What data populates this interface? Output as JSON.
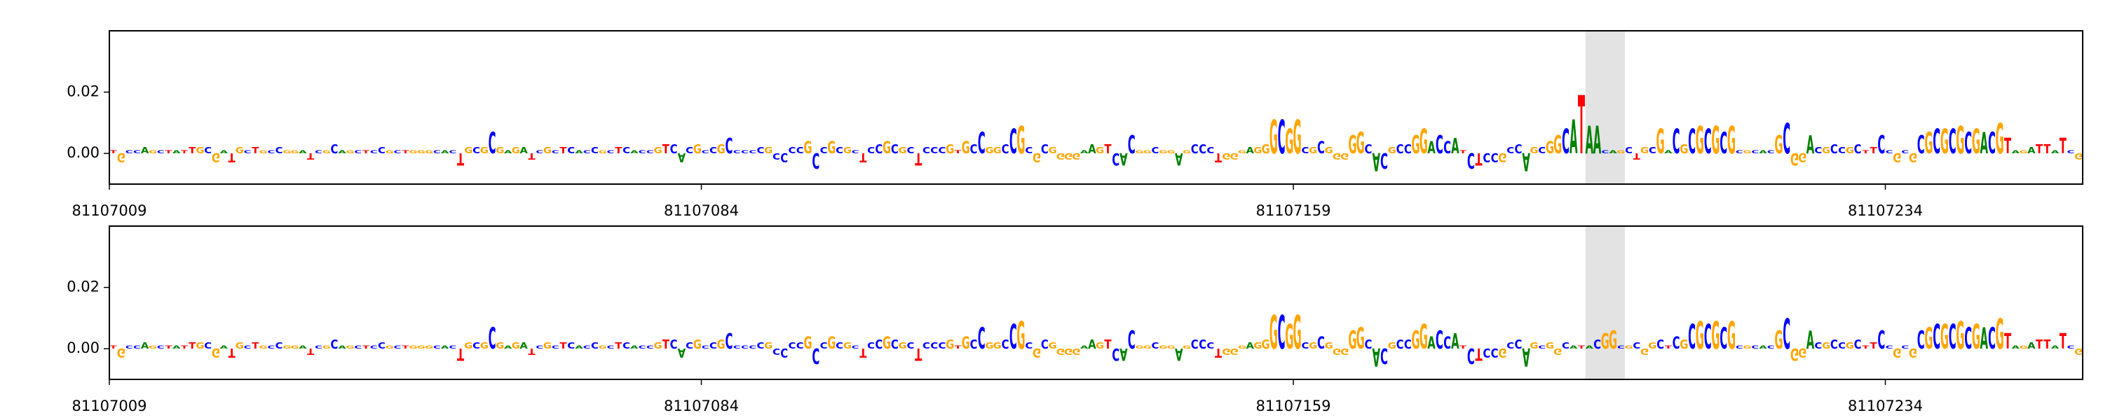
{
  "chart_data": [
    {
      "type": "logo",
      "xlim": [
        81107009,
        81107259
      ],
      "xticks": [
        81107009,
        81107084,
        81107159,
        81107234
      ],
      "ylim": [
        -0.01,
        0.04
      ],
      "yticks": [
        {
          "value": 0,
          "label": "0.00"
        },
        {
          "value": 0.02,
          "label": "0.02"
        }
      ],
      "highlight": [
        81107196,
        81107201
      ],
      "colors": {
        "A": "#008000",
        "C": "#0000ff",
        "G": "#ffa500",
        "T": "#ff0000"
      },
      "bases": [
        "T",
        "G",
        "C",
        "C",
        "A",
        "G",
        "C",
        "T",
        "A",
        "T",
        "T",
        "G",
        "C",
        "G",
        "A",
        "T",
        "G",
        "C",
        "T",
        "G",
        "C",
        "C",
        "G",
        "G",
        "A",
        "T",
        "C",
        "G",
        "C",
        "A",
        "G",
        "C",
        "T",
        "C",
        "C",
        "G",
        "C",
        "T",
        "G",
        "G",
        "G",
        "C",
        "A",
        "C",
        "T",
        "G",
        "C",
        "G",
        "C",
        "G",
        "A",
        "G",
        "A",
        "T",
        "C",
        "G",
        "C",
        "T",
        "C",
        "A",
        "C",
        "C",
        "G",
        "C",
        "T",
        "C",
        "A",
        "C",
        "C",
        "G",
        "T",
        "C",
        "A",
        "C",
        "G",
        "C",
        "C",
        "G",
        "C",
        "C",
        "C",
        "C",
        "C",
        "G",
        "C",
        "C",
        "C",
        "C",
        "G",
        "C",
        "C",
        "G",
        "C",
        "G",
        "C",
        "T",
        "C",
        "C",
        "G",
        "C",
        "G",
        "C",
        "T",
        "C",
        "C",
        "C",
        "G",
        "T",
        "G",
        "C",
        "C",
        "G",
        "G",
        "C",
        "C",
        "G",
        "C",
        "G",
        "C",
        "G",
        "G",
        "G",
        "G",
        "A",
        "A",
        "G",
        "T",
        "C",
        "A",
        "C",
        "G",
        "G",
        "C",
        "G",
        "G",
        "A",
        "G",
        "C",
        "C",
        "C",
        "T",
        "G",
        "G",
        "G",
        "A",
        "G",
        "G",
        "G",
        "C",
        "G",
        "G",
        "C",
        "G",
        "C",
        "G",
        "G",
        "G",
        "G",
        "G",
        "C",
        "A",
        "C",
        "G",
        "C",
        "C",
        "G",
        "G",
        "A",
        "C",
        "C",
        "A",
        "T",
        "C",
        "T",
        "C",
        "C",
        "G",
        "C",
        "C",
        "A",
        "G",
        "C",
        "G",
        "G",
        "C",
        "A",
        "T",
        "A",
        "A",
        "C",
        "A",
        "G",
        "C",
        "T",
        "G",
        "C",
        "G",
        "A",
        "C",
        "G",
        "C",
        "G",
        "C",
        "G",
        "C",
        "G",
        "C",
        "G",
        "C",
        "A",
        "C",
        "G",
        "C",
        "G",
        "G",
        "A",
        "C",
        "G",
        "C",
        "C",
        "G",
        "C",
        "T",
        "T",
        "C",
        "C",
        "G",
        "C",
        "G",
        "C",
        "G",
        "C",
        "G",
        "C",
        "G",
        "C",
        "G",
        "A",
        "C",
        "G",
        "T",
        "A",
        "G",
        "A",
        "T",
        "T",
        "A",
        "T",
        "C",
        "G"
      ],
      "values": [
        0.001,
        -0.003,
        0.001,
        0.001,
        0.002,
        0.001,
        0.001,
        0.001,
        0.001,
        0.001,
        0.002,
        0.002,
        0.002,
        -0.003,
        0.001,
        -0.003,
        0.002,
        0.001,
        0.002,
        0.001,
        0.001,
        0.002,
        0.001,
        0.001,
        0.001,
        -0.002,
        0.001,
        0.001,
        0.003,
        0.001,
        0.001,
        0.001,
        0.001,
        0.001,
        0.002,
        0.001,
        0.001,
        0.001,
        0.001,
        0.001,
        0.001,
        0.001,
        0.001,
        0.001,
        -0.004,
        0.002,
        0.002,
        0.002,
        0.007,
        0.002,
        0.001,
        0.002,
        0.002,
        -0.002,
        0.001,
        0.002,
        0.001,
        0.002,
        0.002,
        0.001,
        0.001,
        0.002,
        0.001,
        0.001,
        0.002,
        0.002,
        0.001,
        0.001,
        0.001,
        0.002,
        0.003,
        0.003,
        -0.003,
        0.002,
        0.003,
        0.001,
        0.002,
        0.003,
        0.005,
        0.001,
        0.001,
        0.001,
        0.002,
        0.002,
        -0.002,
        -0.003,
        0.002,
        0.002,
        0.004,
        -0.005,
        0.002,
        0.004,
        0.002,
        0.002,
        0.001,
        -0.003,
        0.002,
        0.003,
        0.004,
        0.003,
        0.002,
        0.002,
        -0.004,
        0.002,
        0.002,
        0.002,
        0.003,
        0.001,
        0.004,
        0.003,
        0.007,
        0.002,
        0.002,
        0.003,
        0.008,
        0.009,
        0.002,
        -0.003,
        0.003,
        0.002,
        -0.002,
        -0.002,
        -0.002,
        0.001,
        0.003,
        0.002,
        0.003,
        -0.004,
        -0.004,
        0.006,
        0.001,
        0.001,
        0.002,
        0.001,
        0.001,
        -0.004,
        0.001,
        0.003,
        0.003,
        0.002,
        -0.003,
        -0.002,
        -0.002,
        0.001,
        0.002,
        0.002,
        0.003,
        0.011,
        0.011,
        0.008,
        0.011,
        0.002,
        0.002,
        0.004,
        0.002,
        -0.002,
        -0.002,
        0.006,
        0.007,
        0.003,
        -0.006,
        -0.005,
        0.002,
        0.003,
        0.003,
        0.006,
        0.008,
        0.004,
        0.006,
        0.004,
        0.005,
        0.001,
        -0.005,
        -0.004,
        -0.003,
        -0.003,
        -0.003,
        0.002,
        0.003,
        -0.006,
        0.002,
        0.002,
        0.004,
        0.006,
        0.008,
        0.011,
        0.019,
        0.009,
        0.009,
        0.001,
        0.001,
        0.001,
        0.002,
        -0.002,
        0.002,
        0.002,
        0.008,
        0.001,
        0.008,
        0.003,
        0.008,
        0.009,
        0.008,
        0.009,
        0.007,
        0.009,
        0.001,
        0.001,
        0.001,
        0.001,
        0.001,
        0.006,
        0.01,
        -0.004,
        -0.003,
        0.006,
        0.002,
        0.002,
        0.003,
        0.002,
        0.002,
        0.003,
        0.001,
        0.002,
        0.006,
        0.001,
        -0.003,
        0.001,
        -0.003,
        0.006,
        0.007,
        0.008,
        0.008,
        0.008,
        0.009,
        0.007,
        0.008,
        0.007,
        0.007,
        0.01,
        0.005,
        0.001,
        0.001,
        0.002,
        0.003,
        0.003,
        0.001,
        0.005,
        0.001,
        -0.002
      ]
    },
    {
      "type": "logo",
      "xlim": [
        81107009,
        81107259
      ],
      "xticks": [
        81107009,
        81107084,
        81107159,
        81107234
      ],
      "ylim": [
        -0.01,
        0.04
      ],
      "yticks": [
        {
          "value": 0,
          "label": "0.00"
        },
        {
          "value": 0.02,
          "label": "0.02"
        }
      ],
      "highlight": [
        81107196,
        81107201
      ],
      "colors": {
        "A": "#008000",
        "C": "#0000ff",
        "G": "#ffa500",
        "T": "#ff0000"
      },
      "bases": [
        "T",
        "G",
        "C",
        "C",
        "A",
        "G",
        "C",
        "T",
        "A",
        "T",
        "T",
        "G",
        "C",
        "G",
        "A",
        "T",
        "G",
        "C",
        "T",
        "G",
        "C",
        "C",
        "G",
        "G",
        "A",
        "T",
        "C",
        "G",
        "C",
        "A",
        "G",
        "C",
        "T",
        "C",
        "C",
        "G",
        "C",
        "T",
        "G",
        "G",
        "G",
        "C",
        "A",
        "C",
        "T",
        "G",
        "C",
        "G",
        "C",
        "G",
        "A",
        "G",
        "A",
        "T",
        "C",
        "G",
        "C",
        "T",
        "C",
        "A",
        "C",
        "C",
        "G",
        "C",
        "T",
        "C",
        "A",
        "C",
        "C",
        "G",
        "T",
        "C",
        "A",
        "C",
        "G",
        "C",
        "C",
        "G",
        "C",
        "C",
        "C",
        "C",
        "C",
        "G",
        "C",
        "C",
        "C",
        "C",
        "G",
        "C",
        "C",
        "G",
        "C",
        "G",
        "C",
        "T",
        "C",
        "C",
        "G",
        "C",
        "G",
        "C",
        "T",
        "C",
        "C",
        "C",
        "G",
        "T",
        "G",
        "C",
        "C",
        "G",
        "G",
        "C",
        "C",
        "G",
        "C",
        "G",
        "C",
        "G",
        "G",
        "G",
        "G",
        "A",
        "A",
        "G",
        "T",
        "C",
        "A",
        "C",
        "G",
        "G",
        "C",
        "G",
        "G",
        "A",
        "G",
        "C",
        "C",
        "C",
        "T",
        "G",
        "G",
        "G",
        "A",
        "G",
        "G",
        "G",
        "C",
        "G",
        "G",
        "C",
        "G",
        "C",
        "G",
        "G",
        "G",
        "G",
        "G",
        "C",
        "A",
        "C",
        "G",
        "C",
        "C",
        "G",
        "G",
        "A",
        "C",
        "C",
        "A",
        "T",
        "C",
        "T",
        "C",
        "C",
        "G",
        "C",
        "C",
        "A",
        "G",
        "C",
        "G",
        "G",
        "C",
        "A",
        "T",
        "A",
        "C",
        "G",
        "G",
        "C",
        "G",
        "C",
        "G",
        "G",
        "C",
        "T",
        "C",
        "G",
        "C",
        "G",
        "C",
        "G",
        "C",
        "G",
        "C",
        "G",
        "C",
        "A",
        "C",
        "G",
        "C",
        "G",
        "G",
        "A",
        "C",
        "G",
        "C",
        "C",
        "G",
        "C",
        "T",
        "T",
        "C",
        "C",
        "G",
        "C",
        "G",
        "C",
        "G",
        "C",
        "G",
        "C",
        "G",
        "C",
        "G",
        "A",
        "C",
        "G",
        "T",
        "A",
        "G",
        "A",
        "T",
        "T",
        "A",
        "T",
        "C",
        "G"
      ],
      "values": [
        0.001,
        -0.003,
        0.001,
        0.001,
        0.002,
        0.001,
        0.001,
        0.001,
        0.001,
        0.001,
        0.002,
        0.002,
        0.002,
        -0.003,
        0.001,
        -0.003,
        0.002,
        0.001,
        0.002,
        0.001,
        0.001,
        0.002,
        0.001,
        0.001,
        0.001,
        -0.002,
        0.001,
        0.001,
        0.003,
        0.001,
        0.001,
        0.001,
        0.001,
        0.001,
        0.002,
        0.001,
        0.001,
        0.001,
        0.001,
        0.001,
        0.001,
        0.001,
        0.001,
        0.001,
        -0.004,
        0.002,
        0.002,
        0.002,
        0.007,
        0.002,
        0.001,
        0.002,
        0.002,
        -0.002,
        0.001,
        0.002,
        0.001,
        0.002,
        0.002,
        0.001,
        0.001,
        0.002,
        0.001,
        0.001,
        0.002,
        0.002,
        0.001,
        0.001,
        0.001,
        0.002,
        0.003,
        0.003,
        -0.003,
        0.002,
        0.003,
        0.001,
        0.002,
        0.003,
        0.005,
        0.001,
        0.001,
        0.001,
        0.002,
        0.002,
        -0.002,
        -0.003,
        0.002,
        0.002,
        0.004,
        -0.005,
        0.002,
        0.004,
        0.002,
        0.002,
        0.001,
        -0.003,
        0.002,
        0.003,
        0.004,
        0.003,
        0.002,
        0.002,
        -0.004,
        0.002,
        0.002,
        0.002,
        0.003,
        0.001,
        0.004,
        0.003,
        0.007,
        0.002,
        0.002,
        0.003,
        0.008,
        0.009,
        0.002,
        -0.003,
        0.003,
        0.002,
        -0.002,
        -0.002,
        -0.002,
        0.001,
        0.003,
        0.002,
        0.003,
        -0.004,
        -0.004,
        0.006,
        0.001,
        0.001,
        0.002,
        0.001,
        0.001,
        -0.004,
        0.001,
        0.003,
        0.003,
        0.002,
        -0.003,
        -0.002,
        -0.002,
        0.001,
        0.002,
        0.002,
        0.003,
        0.011,
        0.011,
        0.008,
        0.011,
        0.002,
        0.002,
        0.004,
        0.002,
        -0.002,
        -0.002,
        0.006,
        0.007,
        0.003,
        -0.006,
        -0.005,
        0.002,
        0.003,
        0.003,
        0.006,
        0.008,
        0.004,
        0.006,
        0.004,
        0.005,
        0.001,
        -0.005,
        -0.004,
        -0.003,
        -0.003,
        -0.003,
        0.002,
        0.003,
        -0.006,
        0.002,
        0.001,
        0.002,
        -0.002,
        0.002,
        0.001,
        0.001,
        0.001,
        0.003,
        0.005,
        0.006,
        0.001,
        0.001,
        0.002,
        -0.002,
        0.002,
        0.003,
        0.001,
        0.004,
        0.003,
        0.008,
        0.009,
        0.008,
        0.009,
        0.007,
        0.009,
        0.001,
        0.001,
        0.001,
        0.001,
        0.001,
        0.006,
        0.01,
        -0.004,
        -0.003,
        0.006,
        0.002,
        0.002,
        0.003,
        0.002,
        0.002,
        0.003,
        0.001,
        0.002,
        0.006,
        0.001,
        -0.003,
        0.001,
        -0.003,
        0.006,
        0.007,
        0.008,
        0.008,
        0.008,
        0.009,
        0.007,
        0.008,
        0.007,
        0.007,
        0.01,
        0.005,
        0.001,
        0.001,
        0.002,
        0.003,
        0.003,
        0.001,
        0.005,
        0.001,
        -0.002
      ]
    }
  ]
}
